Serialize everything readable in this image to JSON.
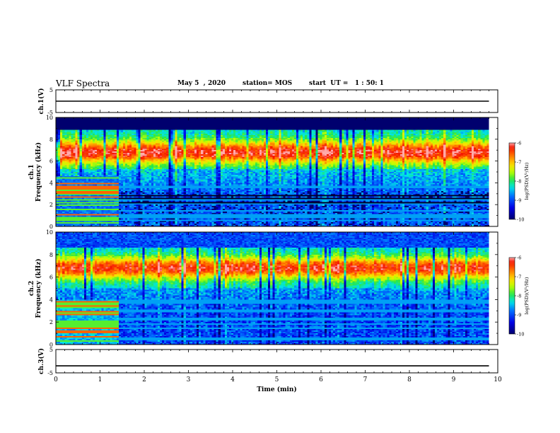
{
  "header": {
    "title": "VLF Spectra",
    "date": "May 5  , 2020",
    "station": "station= MOS",
    "start_time": "start  UT =   1 : 50: 1"
  },
  "chart_data": [
    {
      "type": "line",
      "name": "ch1-voltage",
      "ylabel": "ch.1(V)",
      "ylim": [
        -5,
        5
      ],
      "yticks": [
        "5",
        "-5"
      ],
      "xlim": [
        0,
        10
      ],
      "series": [
        {
          "x": [
            0,
            9.8
          ],
          "y": [
            0,
            0
          ]
        }
      ]
    },
    {
      "type": "heatmap",
      "name": "ch1-spectrogram",
      "ylabel_top": "ch.1",
      "ylabel": "Frequency (kHz)",
      "ylim": [
        0,
        10
      ],
      "yticks": [
        "0",
        "2",
        "4",
        "6",
        "8",
        "10"
      ],
      "xlim": [
        0,
        10
      ],
      "data_extent_min": 9.8,
      "colorbar": {
        "label": "log(PSD)(V²/Hz)",
        "range": [
          -10,
          -6
        ],
        "ticks": [
          "-6",
          "-7",
          "-8",
          "-9",
          "-10"
        ]
      }
    },
    {
      "type": "heatmap",
      "name": "ch2-spectrogram",
      "ylabel_top": "ch.2",
      "ylabel": "Frequency (kHz)",
      "ylim": [
        0,
        10
      ],
      "yticks": [
        "0",
        "2",
        "4",
        "6",
        "8",
        "10"
      ],
      "xlim": [
        0,
        10
      ],
      "data_extent_min": 9.8,
      "colorbar": {
        "label": "log(PSD)(V²/Hz)",
        "range": [
          -10,
          -6
        ],
        "ticks": [
          "-6",
          "-7",
          "-8",
          "-9",
          "-10"
        ]
      }
    },
    {
      "type": "line",
      "name": "ch3-voltage",
      "ylabel": "ch.3(V)",
      "ylim": [
        -5,
        5
      ],
      "yticks": [
        "5",
        "-5"
      ],
      "xlim": [
        0,
        10
      ],
      "xlabel": "Time  (min)",
      "xticks": [
        "0",
        "1",
        "2",
        "3",
        "4",
        "5",
        "6",
        "7",
        "8",
        "9",
        "10"
      ],
      "series": [
        {
          "x": [
            0,
            9.8
          ],
          "y": [
            -2,
            -2
          ]
        }
      ]
    }
  ]
}
